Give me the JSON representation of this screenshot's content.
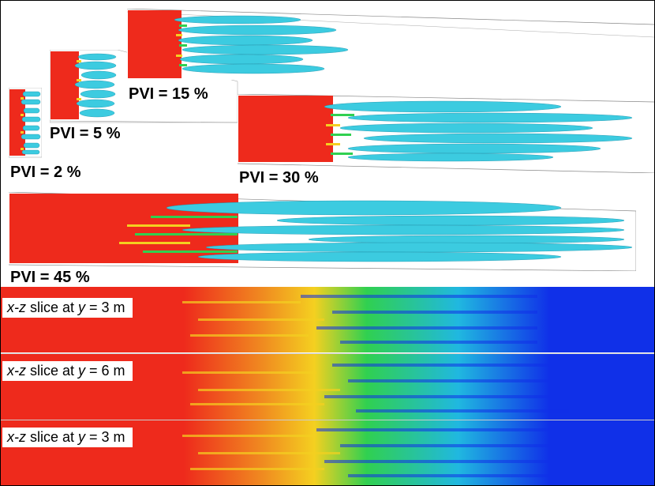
{
  "snapshots": [
    {
      "id": "pvi2",
      "label": "PVI = 2 %"
    },
    {
      "id": "pvi5",
      "label": "PVI = 5 %"
    },
    {
      "id": "pvi15",
      "label": "PVI = 15 %"
    },
    {
      "id": "pvi30",
      "label": "PVI = 30 %"
    },
    {
      "id": "pvi45",
      "label": "PVI = 45 %"
    }
  ],
  "slices": [
    {
      "prefix": "x-z",
      "mid": " slice at ",
      "var": "y",
      "suffix": " = 3 m"
    },
    {
      "prefix": "x-z",
      "mid": " slice at ",
      "var": "y",
      "suffix": " = 6 m"
    },
    {
      "prefix": "x-z",
      "mid": " slice at ",
      "var": "y",
      "suffix": " = 3 m"
    }
  ],
  "colors": {
    "injected_fluid": "#ee2a1c",
    "displaced_fluid": "#1030e8",
    "isosurface": "#3ccbe0",
    "front_mid": "#f4d020",
    "front_green": "#30d050"
  }
}
